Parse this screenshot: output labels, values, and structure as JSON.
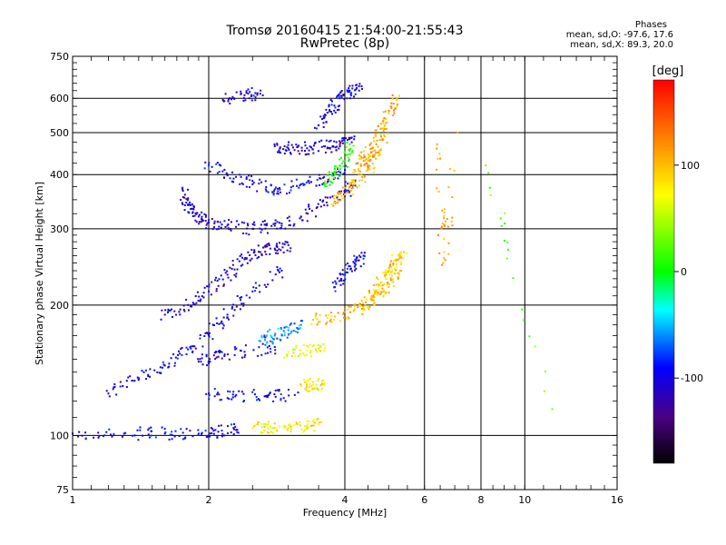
{
  "header": {
    "title_line1": "Tromsø 20160415 21:54:00-21:55:43",
    "title_line2": "RwPretec (8p)",
    "phases_title": "Phases",
    "phases_o": "mean, sd,O: -97.6, 17.6",
    "phases_x": "mean, sd,X:  89.3, 20.0"
  },
  "colorbar": {
    "unit_label": "[deg]",
    "ticks": [
      {
        "value": 100,
        "label": "100"
      },
      {
        "value": 0,
        "label": "0"
      },
      {
        "value": -100,
        "label": "-100"
      }
    ],
    "range": [
      -180,
      180
    ]
  },
  "chart_data": {
    "type": "scatter",
    "title": "Tromsø 20160415 21:54:00-21:55:43",
    "subtitle": "RwPretec (8p)",
    "xlabel": "Frequency [MHz]",
    "ylabel": "Stationary phase Virtual Height [km]",
    "x_scale": "log",
    "y_scale": "log",
    "xlim": [
      1,
      16
    ],
    "ylim": [
      75,
      750
    ],
    "x_ticks": [
      1,
      2,
      4,
      6,
      8,
      10,
      16
    ],
    "y_ticks": [
      75,
      100,
      200,
      300,
      400,
      500,
      600,
      750
    ],
    "grid": true,
    "color_by": "phase [deg]",
    "traces": [
      {
        "x": [
          1.0,
          1.3,
          1.6,
          1.9,
          2.1,
          2.3
        ],
        "y": [
          101,
          101,
          101,
          101,
          102,
          103
        ],
        "phase": -100
      },
      {
        "x": [
          1.2,
          1.4,
          1.6,
          1.8,
          2.0,
          2.2,
          2.5,
          2.9
        ],
        "y": [
          125,
          135,
          145,
          158,
          172,
          190,
          215,
          240
        ],
        "phase": -100
      },
      {
        "x": [
          1.6,
          1.8,
          2.0,
          2.2,
          2.4,
          2.6,
          2.8,
          3.0
        ],
        "y": [
          190,
          200,
          215,
          235,
          255,
          265,
          270,
          275
        ],
        "phase": -110
      },
      {
        "x": [
          1.75,
          1.8,
          1.9,
          2.0,
          2.2,
          2.5,
          2.8,
          3.2,
          3.6,
          4.0,
          4.2
        ],
        "y": [
          370,
          340,
          320,
          310,
          305,
          300,
          305,
          320,
          340,
          360,
          385
        ],
        "phase": -110
      },
      {
        "x": [
          2.0,
          2.2,
          2.5,
          2.8,
          3.2,
          3.6,
          4.0
        ],
        "y": [
          420,
          400,
          380,
          370,
          380,
          395,
          410
        ],
        "phase": -100
      },
      {
        "x": [
          2.8,
          3.0,
          3.3,
          3.6,
          3.9,
          4.2
        ],
        "y": [
          465,
          460,
          460,
          465,
          470,
          490
        ],
        "phase": -110
      },
      {
        "x": [
          2.15,
          2.4,
          2.6
        ],
        "y": [
          595,
          610,
          615
        ],
        "phase": -105
      },
      {
        "x": [
          3.5,
          3.7,
          3.9,
          4.1,
          4.3
        ],
        "y": [
          520,
          560,
          600,
          625,
          640
        ],
        "phase": -100
      },
      {
        "x": [
          3.8,
          4.0,
          4.2,
          4.4
        ],
        "y": [
          220,
          235,
          250,
          260
        ],
        "phase": -100
      },
      {
        "x": [
          2.0,
          2.3,
          2.7,
          3.1
        ],
        "y": [
          125,
          124,
          123,
          124
        ],
        "phase": -100
      },
      {
        "x": [
          1.9,
          2.1,
          2.4,
          2.8
        ],
        "y": [
          148,
          152,
          156,
          160
        ],
        "phase": -105
      },
      {
        "x": [
          2.6,
          2.8,
          3.0,
          3.2
        ],
        "y": [
          165,
          170,
          175,
          180
        ],
        "phase": -60
      },
      {
        "x": [
          2.5,
          2.7,
          3.0,
          3.3,
          3.5
        ],
        "y": [
          104,
          104,
          104,
          105,
          106
        ],
        "phase": 80
      },
      {
        "x": [
          3.2,
          3.4,
          3.6
        ],
        "y": [
          130,
          131,
          132
        ],
        "phase": 80
      },
      {
        "x": [
          3.0,
          3.3,
          3.6
        ],
        "y": [
          156,
          157,
          157
        ],
        "phase": 70
      },
      {
        "x": [
          3.4,
          3.8,
          4.2,
          4.6,
          5.0,
          5.3
        ],
        "y": [
          185,
          188,
          195,
          205,
          220,
          240
        ],
        "phase": 100
      },
      {
        "x": [
          4.4,
          4.6,
          4.8,
          5.0,
          5.2,
          5.4
        ],
        "y": [
          195,
          210,
          225,
          240,
          255,
          265
        ],
        "phase": 95
      },
      {
        "x": [
          3.8,
          4.0,
          4.2,
          4.5,
          4.7,
          4.9
        ],
        "y": [
          345,
          360,
          380,
          410,
          450,
          490
        ],
        "phase": 100
      },
      {
        "x": [
          4.2,
          4.4,
          4.6,
          4.8,
          5.0,
          5.2
        ],
        "y": [
          410,
          430,
          460,
          510,
          560,
          600
        ],
        "phase": 110
      },
      {
        "x": [
          3.6,
          3.8,
          4.0,
          4.1
        ],
        "y": [
          380,
          400,
          430,
          470
        ],
        "phase": 10
      },
      {
        "x": [
          6.4,
          6.6,
          7.1
        ],
        "y": [
          470,
          250,
          500
        ],
        "phase": 110
      },
      {
        "x": [
          8.2,
          11.5
        ],
        "y": [
          420,
          115
        ],
        "phase": 30
      }
    ]
  }
}
